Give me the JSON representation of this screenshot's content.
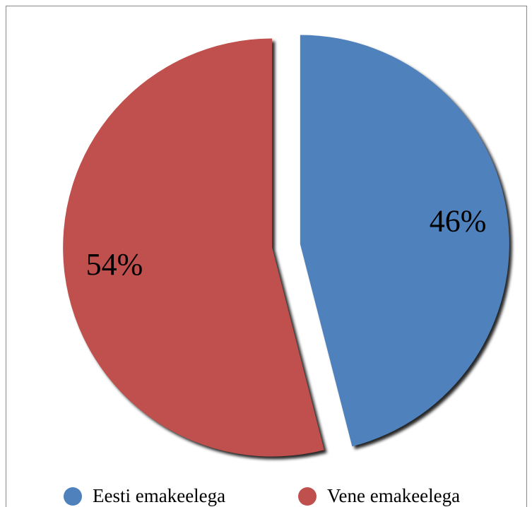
{
  "chart_data": {
    "type": "pie",
    "categories": [
      "Eesti emakeelega",
      "Vene emakeelega"
    ],
    "values": [
      46,
      54
    ],
    "value_labels": [
      "46%",
      "54%"
    ],
    "colors": [
      "#4f81bd",
      "#c0504d"
    ],
    "legend": "bottom"
  }
}
